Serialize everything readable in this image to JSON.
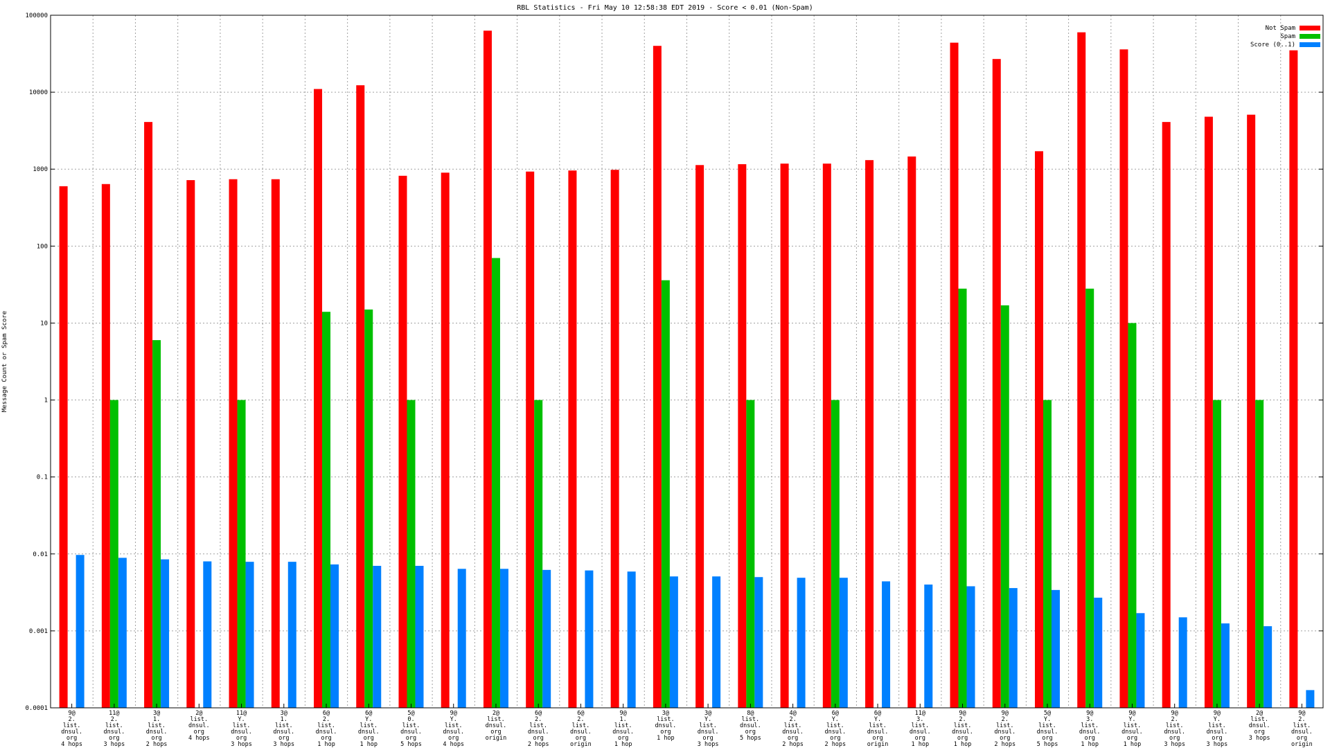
{
  "chart_data": {
    "type": "bar",
    "title": "RBL Statistics - Fri May 10 12:58:38 EDT 2019 - Score < 0.01 (Non-Spam)",
    "xlabel": "",
    "ylabel": "Message Count or Spam Score",
    "yscale": "log",
    "ylim": [
      0.0001,
      100000
    ],
    "yticks": [
      "0.0001",
      "0.001",
      "0.01",
      "0.1",
      "1",
      "10",
      "100",
      "1000",
      "10000",
      "100000"
    ],
    "grid": true,
    "legend_position": "top-right",
    "colors": {
      "Not Spam": "#ff0000",
      "Spam": "#00c000",
      "Score (0..1)": "#0080ff"
    },
    "categories": [
      [
        "9@",
        "2.",
        "list.",
        "dnsul.",
        "org",
        "4 hops"
      ],
      [
        "11@",
        "2.",
        "list.",
        "dnsul.",
        "org",
        "3 hops"
      ],
      [
        "3@",
        "1.",
        "list.",
        "dnsul.",
        "org",
        "2 hops"
      ],
      [
        "2@",
        "list.",
        "dnsul.",
        "org",
        "4 hops"
      ],
      [
        "11@",
        "Y.",
        "list.",
        "dnsul.",
        "org",
        "3 hops"
      ],
      [
        "3@",
        "1.",
        "list.",
        "dnsul.",
        "org",
        "3 hops"
      ],
      [
        "6@",
        "2.",
        "list.",
        "dnsul.",
        "org",
        "1 hop"
      ],
      [
        "6@",
        "Y.",
        "list.",
        "dnsul.",
        "org",
        "1 hop"
      ],
      [
        "5@",
        "0.",
        "list.",
        "dnsul.",
        "org",
        "5 hops"
      ],
      [
        "9@",
        "Y.",
        "list.",
        "dnsul.",
        "org",
        "4 hops"
      ],
      [
        "2@",
        "list.",
        "dnsul.",
        "org",
        "origin"
      ],
      [
        "6@",
        "2.",
        "list.",
        "dnsul.",
        "org",
        "2 hops"
      ],
      [
        "6@",
        "2.",
        "list.",
        "dnsul.",
        "org",
        "origin"
      ],
      [
        "9@",
        "1.",
        "list.",
        "dnsul.",
        "org",
        "1 hop"
      ],
      [
        "3@",
        "list.",
        "dnsul.",
        "org",
        "1 hop"
      ],
      [
        "3@",
        "Y.",
        "list.",
        "dnsul.",
        "org",
        "3 hops"
      ],
      [
        "8@",
        "list.",
        "dnsul.",
        "org",
        "5 hops"
      ],
      [
        "4@",
        "2.",
        "list.",
        "dnsul.",
        "org",
        "2 hops"
      ],
      [
        "6@",
        "Y.",
        "list.",
        "dnsul.",
        "org",
        "2 hops"
      ],
      [
        "6@",
        "Y.",
        "list.",
        "dnsul.",
        "org",
        "origin"
      ],
      [
        "11@",
        "3.",
        "list.",
        "dnsul.",
        "org",
        "1 hop"
      ],
      [
        "9@",
        "2.",
        "list.",
        "dnsul.",
        "org",
        "1 hop"
      ],
      [
        "9@",
        "2.",
        "list.",
        "dnsul.",
        "org",
        "2 hops"
      ],
      [
        "5@",
        "Y.",
        "list.",
        "dnsul.",
        "org",
        "5 hops"
      ],
      [
        "9@",
        "3.",
        "list.",
        "dnsul.",
        "org",
        "1 hop"
      ],
      [
        "9@",
        "Y.",
        "list.",
        "dnsul.",
        "org",
        "1 hop"
      ],
      [
        "9@",
        "2.",
        "list.",
        "dnsul.",
        "org",
        "3 hops"
      ],
      [
        "9@",
        "Y.",
        "list.",
        "dnsul.",
        "org",
        "3 hops"
      ],
      [
        "2@",
        "list.",
        "dnsul.",
        "org",
        "3 hops"
      ],
      [
        "9@",
        "2.",
        "list.",
        "dnsul.",
        "org",
        "origin"
      ]
    ],
    "series": [
      {
        "name": "Not Spam",
        "values": [
          600,
          640,
          4100,
          720,
          740,
          740,
          11000,
          12300,
          820,
          900,
          63000,
          930,
          960,
          980,
          40000,
          1130,
          1160,
          1180,
          1180,
          1310,
          1460,
          44000,
          27000,
          1710,
          60000,
          36000,
          4100,
          4800,
          5100,
          35000
        ]
      },
      {
        "name": "Spam",
        "values": [
          null,
          1,
          6,
          null,
          1,
          null,
          14,
          15,
          1,
          null,
          70,
          1,
          null,
          null,
          36,
          null,
          1,
          null,
          1,
          null,
          null,
          28,
          17,
          1,
          28,
          10,
          null,
          1,
          1,
          null
        ]
      },
      {
        "name": "Score (0..1)",
        "values": [
          0.0097,
          0.0089,
          0.0085,
          0.008,
          0.0079,
          0.0079,
          0.0073,
          0.007,
          0.007,
          0.0064,
          0.0064,
          0.0062,
          0.0061,
          0.0059,
          0.0051,
          0.0051,
          0.005,
          0.0049,
          0.0049,
          0.0044,
          0.004,
          0.0038,
          0.0036,
          0.0034,
          0.0027,
          0.0017,
          0.0015,
          0.00125,
          0.00115,
          0.00017
        ]
      }
    ]
  }
}
